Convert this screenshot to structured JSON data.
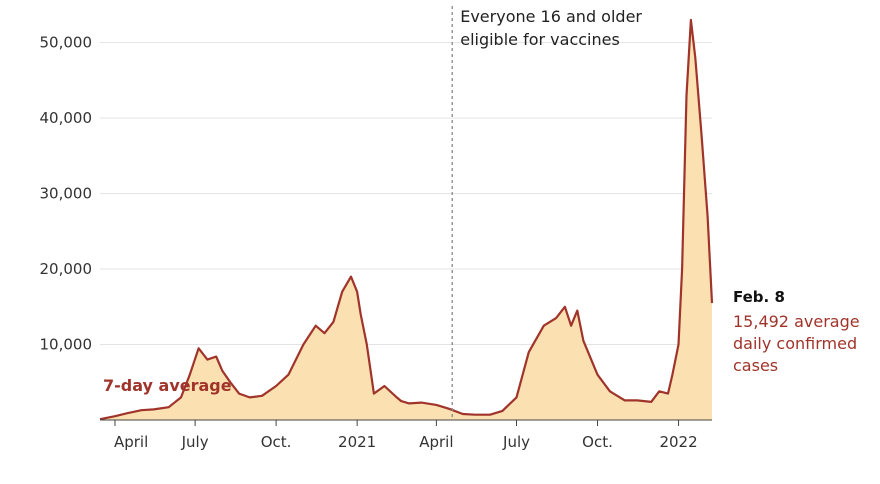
{
  "chart_data": {
    "type": "area",
    "title": "",
    "xlabel": "",
    "ylabel": "",
    "x_ticks": [
      "April",
      "July",
      "Oct.",
      "2021",
      "April",
      "July",
      "Oct.",
      "2022"
    ],
    "y_ticks": [
      "10,000",
      "20,000",
      "30,000",
      "40,000",
      "50,000"
    ],
    "ylim": [
      0,
      53000
    ],
    "grid": "horizontal",
    "colors": {
      "fill": "#fbe0b2",
      "line": "#a0342a",
      "grid": "#e3e3e3",
      "marker": "#888888"
    },
    "series": [
      {
        "name": "7-day average",
        "x": [
          "2020-03-15",
          "2020-04-01",
          "2020-04-15",
          "2020-05-01",
          "2020-05-15",
          "2020-06-01",
          "2020-06-15",
          "2020-06-25",
          "2020-07-05",
          "2020-07-15",
          "2020-07-25",
          "2020-08-01",
          "2020-08-10",
          "2020-08-20",
          "2020-09-01",
          "2020-09-15",
          "2020-10-01",
          "2020-10-15",
          "2020-11-01",
          "2020-11-15",
          "2020-11-25",
          "2020-12-05",
          "2020-12-15",
          "2020-12-25",
          "2021-01-01",
          "2021-01-05",
          "2021-01-12",
          "2021-01-20",
          "2021-02-01",
          "2021-02-15",
          "2021-02-20",
          "2021-03-01",
          "2021-03-15",
          "2021-04-01",
          "2021-04-15",
          "2021-05-01",
          "2021-05-15",
          "2021-06-01",
          "2021-06-15",
          "2021-07-01",
          "2021-07-15",
          "2021-08-01",
          "2021-08-15",
          "2021-08-25",
          "2021-09-01",
          "2021-09-08",
          "2021-09-15",
          "2021-10-01",
          "2021-10-15",
          "2021-11-01",
          "2021-11-15",
          "2021-12-01",
          "2021-12-10",
          "2021-12-20",
          "2021-12-25",
          "2022-01-01",
          "2022-01-05",
          "2022-01-10",
          "2022-01-15",
          "2022-01-20",
          "2022-01-27",
          "2022-02-03",
          "2022-02-08"
        ],
        "values": [
          100,
          500,
          900,
          1300,
          1400,
          1700,
          3000,
          6000,
          9500,
          8000,
          8400,
          6500,
          5000,
          3500,
          3000,
          3200,
          4500,
          6000,
          10000,
          12500,
          11500,
          13000,
          17000,
          19000,
          17000,
          14000,
          10000,
          3500,
          4500,
          3000,
          2500,
          2200,
          2300,
          2000,
          1500,
          800,
          700,
          700,
          1200,
          3000,
          9000,
          12500,
          13500,
          15000,
          12500,
          14500,
          10500,
          6000,
          3800,
          2600,
          2600,
          2400,
          3800,
          3500,
          6000,
          10000,
          20000,
          43000,
          53000,
          48000,
          38000,
          27000,
          15492
        ]
      }
    ],
    "annotations": [
      {
        "at": "2021-04-19",
        "lines": [
          "Everyone 16 and older",
          "eligible for vaccines"
        ]
      }
    ],
    "series_label": "7-day average",
    "end_label": {
      "date": "Feb. 8",
      "lines": [
        "15,492 average",
        "daily confirmed",
        "cases"
      ]
    }
  }
}
